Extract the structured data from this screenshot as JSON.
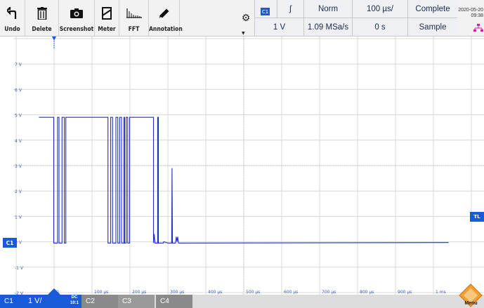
{
  "toolbar": {
    "undo_label": "Undo",
    "delete_label": "Delete",
    "screenshot_label": "Screenshot",
    "meter_label": "Meter",
    "fft_label": "FFT",
    "annotation_label": "Annotation"
  },
  "status": {
    "channel": "C1",
    "edge": "∫",
    "trigger_mode": "Norm",
    "timebase": "100 µs/",
    "acq_state": "Complete",
    "trigger_level": "1 V",
    "sample_rate": "1.09 MSa/s",
    "delay": "0 s",
    "acq_mode": "Sample",
    "date_line1": "2020-05-20",
    "date_line2": "09:38"
  },
  "plot": {
    "y_ticks": [
      "7 V",
      "6 V",
      "5 V",
      "4 V",
      "3 V",
      "2 V",
      "1 V",
      "0 V",
      "-1 V",
      "-2 V"
    ],
    "x_ticks": [
      "0",
      "100 µs",
      "200 µs",
      "300 µs",
      "400 µs",
      "500 µs",
      "600 µs",
      "700 µs",
      "800 µs",
      "900 µs",
      "1 ms"
    ],
    "ch1_marker": "C1",
    "tl_marker": "TL",
    "trace_color": "#2030c8",
    "marker_color": "#1a5ad8"
  },
  "bottom": {
    "c1_label": "C1",
    "c1_scale": "1 V/",
    "c1_coupling": "DC",
    "c1_probe": "10:1",
    "c2_label": "C2",
    "c3_label": "C3",
    "c4_label": "C4",
    "menu_label": "Menu"
  }
}
